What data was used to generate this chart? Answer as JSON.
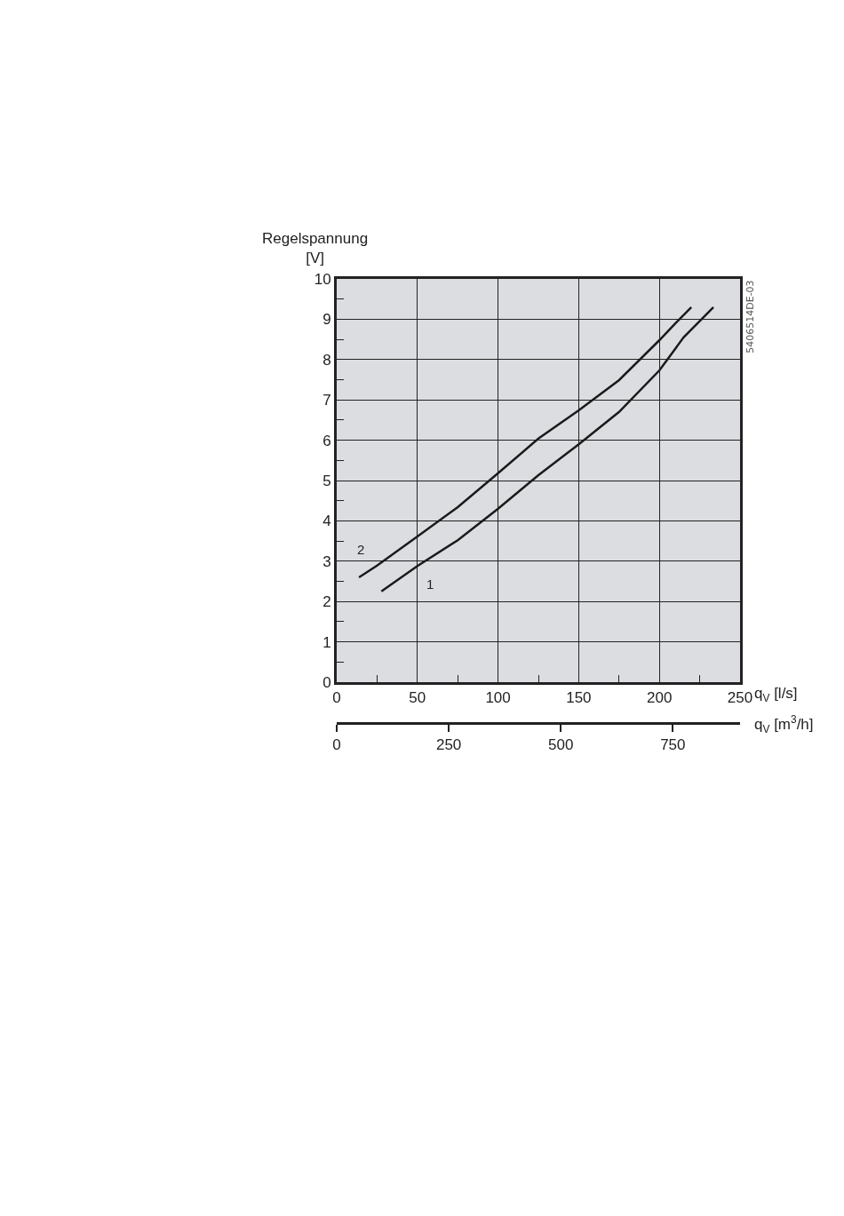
{
  "chart_data": {
    "type": "line",
    "xlabel": "q$_{V}$ [l/s]",
    "ylabel": "Regelspannung [V]",
    "x2label": "q$_{V}$ [m$^{3}$/h]",
    "annotations": [
      "5406514DE-03"
    ],
    "series": [
      {
        "name": "1",
        "color": "#1a1a1a",
        "x": [
          27.7,
          50,
          75,
          100,
          125,
          150,
          175,
          200,
          215,
          233.5
        ],
        "values": [
          2.25,
          2.88,
          3.52,
          4.3,
          5.13,
          5.9,
          6.7,
          7.73,
          8.55,
          9.3
        ]
      },
      {
        "name": "2",
        "color": "#1a1a1a",
        "x": [
          13.8,
          25,
          50,
          75,
          100,
          125,
          150,
          175,
          200,
          210,
          219.8
        ],
        "values": [
          2.6,
          2.89,
          3.61,
          4.34,
          5.18,
          6.04,
          6.74,
          7.49,
          8.48,
          8.9,
          9.3
        ]
      }
    ],
    "xlim": [
      0,
      250
    ],
    "xticks": [
      0,
      {
        "value": 25,
        "label": null
      },
      50,
      {
        "value": 75,
        "label": null
      },
      100,
      {
        "value": 125,
        "label": null
      },
      150,
      {
        "value": 175,
        "label": null
      },
      200,
      {
        "value": 225,
        "label": null
      },
      250
    ],
    "ylim": [
      0,
      10
    ],
    "yticks": [
      0,
      {
        "value": 0.5,
        "label": null
      },
      1,
      {
        "value": 1.5,
        "label": null
      },
      2,
      {
        "value": 2.5,
        "label": null
      },
      3,
      {
        "value": 3.5,
        "label": null
      },
      4,
      {
        "value": 4.5,
        "label": null
      },
      5,
      {
        "value": 5.5,
        "label": null
      },
      6,
      {
        "value": 6.5,
        "label": null
      },
      7,
      {
        "value": 7.5,
        "label": null
      },
      8,
      {
        "value": 8.5,
        "label": null
      },
      9,
      {
        "value": 9.5,
        "label": null
      },
      10
    ],
    "x2lim": [
      0,
      900
    ],
    "x2ticks": [
      0,
      250,
      500,
      750
    ],
    "grid": true,
    "marker": "none",
    "line_style": "solid"
  }
}
